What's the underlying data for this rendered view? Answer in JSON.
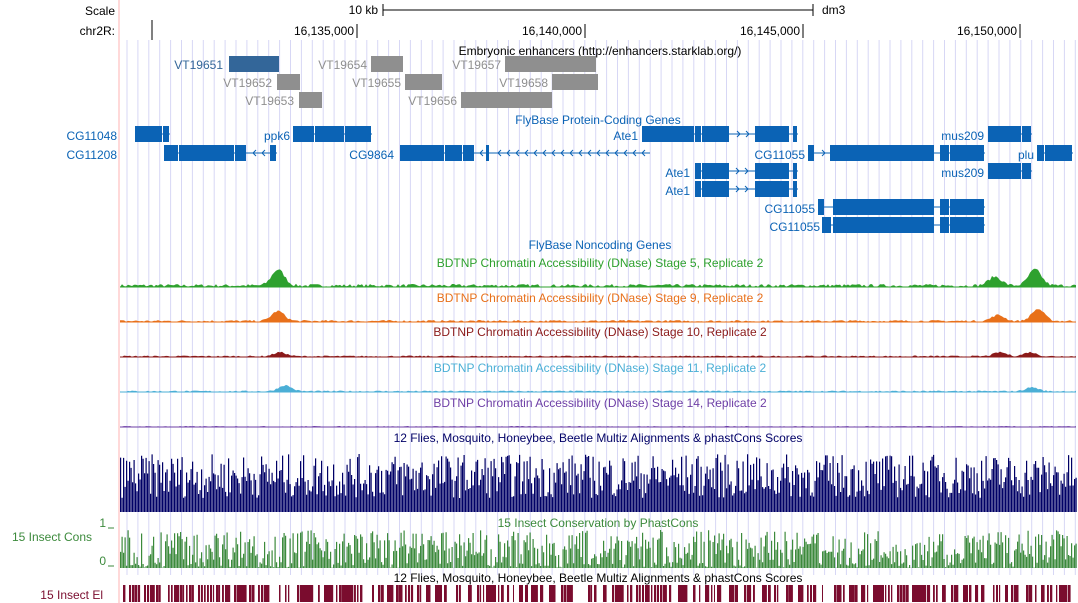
{
  "ruler": {
    "scale_label": "Scale",
    "chrom_label": "chr2R:",
    "scale_bar_text": "10 kb",
    "assembly": "dm3",
    "ticks": [
      "16,135,000",
      "16,140,000",
      "16,145,000",
      "16,150,000"
    ]
  },
  "colors": {
    "gene": "#0b63b5",
    "enhancer": "#8f8f8f",
    "enhancer_highlight": "#336699",
    "stage5": "#2ea12e",
    "stage9": "#e8701a",
    "stage10": "#8b1a1a",
    "stage11": "#4bafd6",
    "stage14": "#6e3fa6",
    "multiz": "#000066",
    "phastcons": "#3c8a3c",
    "elements": "#7a0c2e",
    "guide_line": "#d7d7f5",
    "left_edge": "#ffb3b3"
  },
  "tracks": {
    "enhancers": {
      "title": "Embryonic enhancers (http://enhancers.starklab.org/)",
      "items": [
        "VT19651",
        "VT19652",
        "VT19653",
        "VT19654",
        "VT19655",
        "VT19656",
        "VT19657",
        "VT19658"
      ]
    },
    "genes": {
      "title": "FlyBase Protein-Coding Genes",
      "labels": [
        "CG11048",
        "CG11208",
        "ppk6",
        "CG9864",
        "Ate1",
        "Ate1",
        "Ate1",
        "CG11055",
        "CG11055",
        "CG11055",
        "mus209",
        "mus209",
        "plu"
      ]
    },
    "noncoding": {
      "title": "FlyBase Noncoding Genes"
    },
    "dnase": [
      {
        "title": "BDTNP Chromatin Accessibility (DNase) Stage 5, Replicate 2"
      },
      {
        "title": "BDTNP Chromatin Accessibility (DNase) Stage 9, Replicate 2"
      },
      {
        "title": "BDTNP Chromatin Accessibility (DNase) Stage 10, Replicate 2"
      },
      {
        "title": "BDTNP Chromatin Accessibility (DNase) Stage 11, Replicate 2"
      },
      {
        "title": "BDTNP Chromatin Accessibility (DNase) Stage 14, Replicate 2"
      }
    ],
    "multiz": {
      "title": "12 Flies, Mosquito, Honeybee, Beetle Multiz Alignments & phastCons Scores"
    },
    "phastcons": {
      "title": "15 Insect Conservation by PhastCons",
      "side_label": "15 Insect Cons",
      "axis_max": "1",
      "axis_min": "0"
    },
    "elements": {
      "title": "12 Flies, Mosquito, Honeybee, Beetle Multiz Alignments & phastCons Scores",
      "side_label": "15 Insect El"
    }
  }
}
